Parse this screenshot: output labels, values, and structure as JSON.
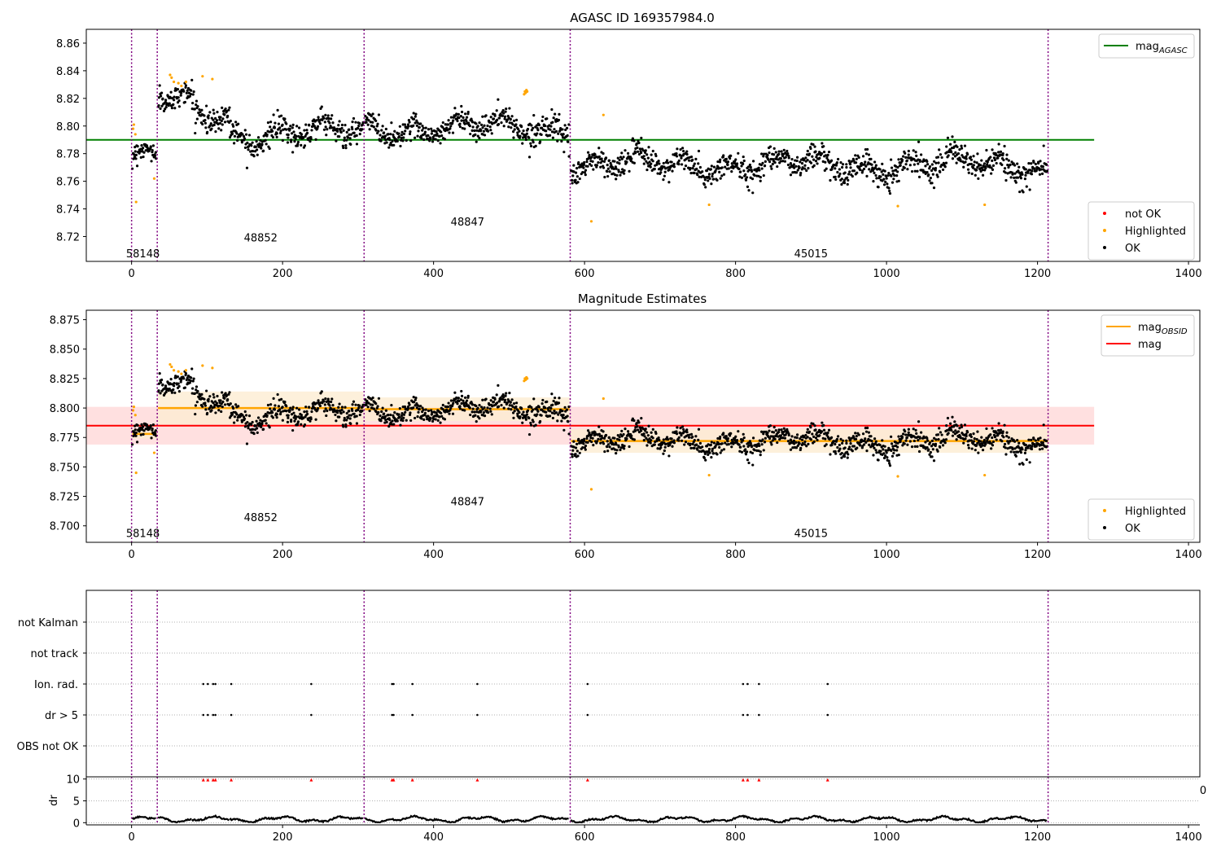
{
  "chart_data": [
    {
      "type": "scatter",
      "title": "AGASC ID 169357984.0",
      "xlim": [
        -60,
        1415
      ],
      "ylim": [
        8.702,
        8.87
      ],
      "x_ticks": [
        0,
        200,
        400,
        600,
        800,
        1000,
        1200,
        1400
      ],
      "y_ticks": [
        8.72,
        8.74,
        8.76,
        8.78,
        8.8,
        8.82,
        8.84,
        8.86
      ],
      "grid": false,
      "obsid_boundaries": [
        0,
        34,
        308,
        581,
        1214
      ],
      "obsid_labels": [
        {
          "text": "58148",
          "x": 15,
          "y": 8.708
        },
        {
          "text": "48852",
          "x": 171,
          "y": 8.7195
        },
        {
          "text": "48847",
          "x": 445,
          "y": 8.731
        },
        {
          "text": "45015",
          "x": 900,
          "y": 8.708
        }
      ],
      "lines": [
        {
          "name": "mag$_{AGASC}$",
          "display": [
            "mag",
            "AGASC"
          ],
          "color": "#008000",
          "x": [
            -60,
            1275
          ],
          "y": [
            8.79,
            8.79
          ]
        }
      ],
      "legends": [
        {
          "location": "upper-right",
          "entries": [
            {
              "label": "mag",
              "sub": "AGASC",
              "kind": "line",
              "color": "#008000"
            }
          ]
        },
        {
          "location": "lower-right",
          "entries": [
            {
              "label": "not OK",
              "kind": "dot",
              "color": "#ff0000"
            },
            {
              "label": "Highlighted",
              "kind": "dot",
              "color": "#ffa500"
            },
            {
              "label": "OK",
              "kind": "dot",
              "color": "#000000"
            }
          ]
        }
      ],
      "highlighted_points": [
        [
          2,
          8.798
        ],
        [
          3,
          8.801
        ],
        [
          5,
          8.794
        ],
        [
          6,
          8.745
        ],
        [
          30,
          8.762
        ],
        [
          51,
          8.837
        ],
        [
          53,
          8.835
        ],
        [
          56,
          8.832
        ],
        [
          62,
          8.831
        ],
        [
          66,
          8.829
        ],
        [
          72,
          8.832
        ],
        [
          94,
          8.836
        ],
        [
          107,
          8.834
        ],
        [
          520,
          8.823
        ],
        [
          521,
          8.825
        ],
        [
          522,
          8.824
        ],
        [
          523,
          8.826
        ],
        [
          524,
          8.825
        ],
        [
          625,
          8.808
        ],
        [
          609,
          8.731
        ],
        [
          765,
          8.743
        ],
        [
          1015,
          8.742
        ],
        [
          1130,
          8.743
        ]
      ],
      "series_ok_segments": [
        {
          "x_start": 1,
          "x_end": 33,
          "center": 8.778,
          "spread": 0.009
        },
        {
          "x_start": 35,
          "x_end": 80,
          "center": 8.818,
          "spread": 0.01
        },
        {
          "x_start": 80,
          "x_end": 130,
          "center": 8.808,
          "spread": 0.012
        },
        {
          "x_start": 130,
          "x_end": 307,
          "center": 8.795,
          "spread": 0.012
        },
        {
          "x_start": 309,
          "x_end": 580,
          "center": 8.799,
          "spread": 0.011
        },
        {
          "x_start": 582,
          "x_end": 1213,
          "center": 8.772,
          "spread": 0.012
        }
      ]
    },
    {
      "type": "scatter",
      "title": "Magnitude Estimates",
      "xlim": [
        -60,
        1415
      ],
      "ylim": [
        8.686,
        8.883
      ],
      "x_ticks": [
        0,
        200,
        400,
        600,
        800,
        1000,
        1200,
        1400
      ],
      "y_ticks": [
        "8.700",
        "8.725",
        "8.750",
        "8.775",
        "8.800",
        "8.825",
        "8.850",
        "8.875"
      ],
      "grid": false,
      "obsid_boundaries": [
        0,
        34,
        308,
        581,
        1214
      ],
      "obsid_labels": [
        {
          "text": "58148",
          "x": 15,
          "y": 8.694
        },
        {
          "text": "48852",
          "x": 171,
          "y": 8.7075
        },
        {
          "text": "48847",
          "x": 445,
          "y": 8.721
        },
        {
          "text": "45015",
          "x": 900,
          "y": 8.694
        }
      ],
      "obsid_mags": [
        {
          "x": [
            1,
            33
          ],
          "mag": 8.778,
          "band": [
            8.774,
            8.782
          ]
        },
        {
          "x": [
            35,
            307
          ],
          "mag": 8.8,
          "band": [
            8.786,
            8.814
          ]
        },
        {
          "x": [
            309,
            580
          ],
          "mag": 8.799,
          "band": [
            8.789,
            8.809
          ]
        },
        {
          "x": [
            582,
            1214
          ],
          "mag": 8.772,
          "band": [
            8.762,
            8.782
          ]
        }
      ],
      "mag": {
        "value": 8.785,
        "band": [
          8.769,
          8.801
        ],
        "x": [
          -60,
          1275
        ]
      },
      "legends": [
        {
          "location": "upper-right",
          "entries": [
            {
              "label": "mag",
              "sub": "OBSID",
              "kind": "line",
              "color": "#ffa500"
            },
            {
              "label": "mag",
              "kind": "line",
              "color": "#ff0000"
            }
          ]
        },
        {
          "location": "lower-right",
          "entries": [
            {
              "label": "Highlighted",
              "kind": "dot",
              "color": "#ffa500"
            },
            {
              "label": "OK",
              "kind": "dot",
              "color": "#000000"
            }
          ]
        }
      ]
    },
    {
      "type": "scatter",
      "title": "",
      "categories": [
        "not Kalman",
        "not track",
        "Ion. rad.",
        "dr > 5",
        "OBS not OK"
      ],
      "grid": true,
      "obsid_boundaries": [
        0,
        34,
        308,
        581,
        1214
      ],
      "flag_x": {
        "Ion. rad.": [
          95,
          101,
          108,
          111,
          132,
          238,
          345,
          347,
          372,
          458,
          604,
          810,
          816,
          831,
          922
        ],
        "dr > 5": [
          95,
          101,
          108,
          111,
          132,
          238,
          345,
          347,
          372,
          458,
          604,
          810,
          816,
          831,
          922
        ]
      }
    },
    {
      "type": "line",
      "title": "",
      "ylabel": "dr",
      "xlim": [
        -60,
        1415
      ],
      "ylim": [
        -0.5,
        10.5
      ],
      "x_ticks": [
        0,
        200,
        400,
        600,
        800,
        1000,
        1200,
        1400
      ],
      "y_ticks": [
        0,
        5,
        10
      ],
      "grid": true,
      "stray_tick_label": "0",
      "obsid_boundaries": [
        0,
        34,
        308,
        581,
        1214
      ],
      "dr_over_threshold_x": [
        95,
        101,
        108,
        111,
        132,
        238,
        345,
        347,
        372,
        458,
        604,
        810,
        816,
        831,
        922
      ]
    }
  ],
  "colors": {
    "ok": "#000000",
    "highlighted": "#ffa500",
    "not_ok": "#ff0000",
    "agasc": "#008000",
    "obsid_line": "#800080",
    "mag_band": "#ffe0e0",
    "obsid_band": "#fdecd2"
  }
}
